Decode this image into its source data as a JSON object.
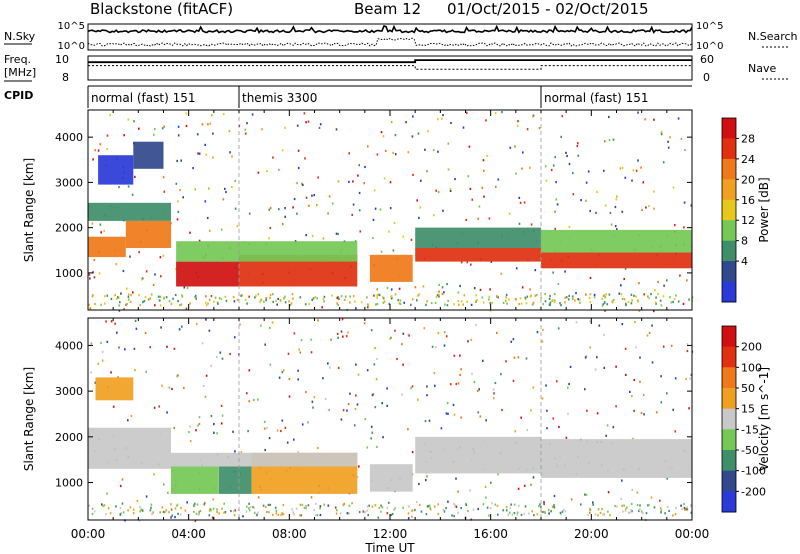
{
  "header": {
    "station": "Blackstone (fitACF)",
    "beam": "Beam 12",
    "dates": "01/Oct/2015 - 02/Oct/2015"
  },
  "strips": {
    "nsky_label": "N.Sky",
    "nsearch_label": "N.Search",
    "noise_ticks": [
      "10^5",
      "10^0"
    ],
    "freq_label_1": "Freq.",
    "freq_label_2": "[MHz]",
    "freq_ticks": [
      "10",
      "8"
    ],
    "nave_label": "Nave",
    "nave_ticks": [
      "60",
      "0"
    ],
    "cpid_label": "CPID",
    "cpid_segments": [
      {
        "label": "normal (fast) 151",
        "start": 0,
        "end": 6
      },
      {
        "label": "themis 3300",
        "start": 6,
        "end": 18
      },
      {
        "label": "normal (fast) 151",
        "start": 18,
        "end": 24
      }
    ],
    "frequency_series": [
      {
        "t": 0,
        "mhz": 10.6
      },
      {
        "t": 13,
        "mhz": 10.6
      },
      {
        "t": 13,
        "mhz": 10.9
      },
      {
        "t": 24,
        "mhz": 10.9
      }
    ],
    "nave_series": [
      {
        "t": 0,
        "nave": 36
      },
      {
        "t": 13,
        "nave": 36
      },
      {
        "t": 13,
        "nave": 27
      },
      {
        "t": 18,
        "nave": 27
      },
      {
        "t": 18,
        "nave": 36
      },
      {
        "t": 24,
        "nave": 36
      }
    ]
  },
  "chart_data": [
    {
      "type": "heatmap",
      "panel": "power",
      "xlabel": "",
      "ylabel": "Slant Range [km]",
      "xlim": [
        0,
        24
      ],
      "ylim": [
        180,
        4600
      ],
      "yticks": [
        1000,
        2000,
        3000,
        4000
      ],
      "colorbar": {
        "label": "Power [dB]",
        "ticks": [
          "28",
          "24",
          "20",
          "16",
          "12",
          "8",
          "4"
        ],
        "colors": [
          "#2a3ad8",
          "#30488c",
          "#3f8e6a",
          "#74c856",
          "#e6c81c",
          "#f0a020",
          "#f07818",
          "#e03010",
          "#d01010"
        ]
      },
      "bands": [
        {
          "t0": 0.0,
          "t1": 1.5,
          "r0": 1350,
          "r1": 1800,
          "color": "#f07818"
        },
        {
          "t0": 1.5,
          "t1": 3.3,
          "r0": 1550,
          "r1": 2150,
          "color": "#f07818"
        },
        {
          "t0": 0.0,
          "t1": 3.3,
          "r0": 2150,
          "r1": 2550,
          "color": "#3f8e6a"
        },
        {
          "t0": 0.4,
          "t1": 1.8,
          "r0": 2950,
          "r1": 3600,
          "color": "#2a3ad8"
        },
        {
          "t0": 1.8,
          "t1": 3.0,
          "r0": 3300,
          "r1": 3900,
          "color": "#30488c"
        },
        {
          "t0": 3.5,
          "t1": 6.0,
          "r0": 700,
          "r1": 1250,
          "color": "#d01010"
        },
        {
          "t0": 6.0,
          "t1": 10.7,
          "r0": 700,
          "r1": 1400,
          "color": "#e03010"
        },
        {
          "t0": 3.5,
          "t1": 10.7,
          "r0": 1250,
          "r1": 1700,
          "color": "#74c856"
        },
        {
          "t0": 11.2,
          "t1": 12.9,
          "r0": 800,
          "r1": 1400,
          "color": "#f07818"
        },
        {
          "t0": 13.0,
          "t1": 18.0,
          "r0": 1250,
          "r1": 1550,
          "color": "#e03010"
        },
        {
          "t0": 13.0,
          "t1": 18.0,
          "r0": 1550,
          "r1": 2000,
          "color": "#3f8e6a"
        },
        {
          "t0": 18.0,
          "t1": 24.0,
          "r0": 1100,
          "r1": 1450,
          "color": "#e03010"
        },
        {
          "t0": 18.0,
          "t1": 24.0,
          "r0": 1450,
          "r1": 1950,
          "color": "#74c856"
        }
      ]
    },
    {
      "type": "heatmap",
      "panel": "velocity",
      "xlabel": "Time UT",
      "ylabel": "Slant Range [km]",
      "xlim": [
        0,
        24
      ],
      "ylim": [
        180,
        4600
      ],
      "yticks": [
        1000,
        2000,
        3000,
        4000
      ],
      "xticks": [
        "00:00",
        "04:00",
        "08:00",
        "12:00",
        "16:00",
        "20:00",
        "00:00"
      ],
      "colorbar": {
        "label": "Velocity [m s^-1]",
        "ticks": [
          "200",
          "100",
          "50",
          "15",
          "-15",
          "-50",
          "-100",
          "-200"
        ],
        "colors": [
          "#2a3ad8",
          "#30488c",
          "#3f8e6a",
          "#74c856",
          "#c8c8c8",
          "#f0a020",
          "#f07818",
          "#e03010",
          "#d01010"
        ]
      },
      "bands": [
        {
          "t0": 0.0,
          "t1": 3.3,
          "r0": 1300,
          "r1": 2200,
          "color": "#c8c8c8"
        },
        {
          "t0": 0.3,
          "t1": 1.8,
          "r0": 2800,
          "r1": 3300,
          "color": "#f0a020"
        },
        {
          "t0": 3.3,
          "t1": 5.2,
          "r0": 750,
          "r1": 1350,
          "color": "#74c856"
        },
        {
          "t0": 5.2,
          "t1": 6.5,
          "r0": 750,
          "r1": 1350,
          "color": "#3f8e6a"
        },
        {
          "t0": 6.5,
          "t1": 10.7,
          "r0": 750,
          "r1": 1650,
          "color": "#f0a020"
        },
        {
          "t0": 3.3,
          "t1": 10.7,
          "r0": 1350,
          "r1": 1650,
          "color": "#c8c8c8"
        },
        {
          "t0": 11.2,
          "t1": 12.9,
          "r0": 800,
          "r1": 1400,
          "color": "#c8c8c8"
        },
        {
          "t0": 13.0,
          "t1": 18.0,
          "r0": 1200,
          "r1": 2000,
          "color": "#c8c8c8"
        },
        {
          "t0": 18.0,
          "t1": 24.0,
          "r0": 1100,
          "r1": 1950,
          "color": "#c8c8c8"
        }
      ]
    }
  ]
}
